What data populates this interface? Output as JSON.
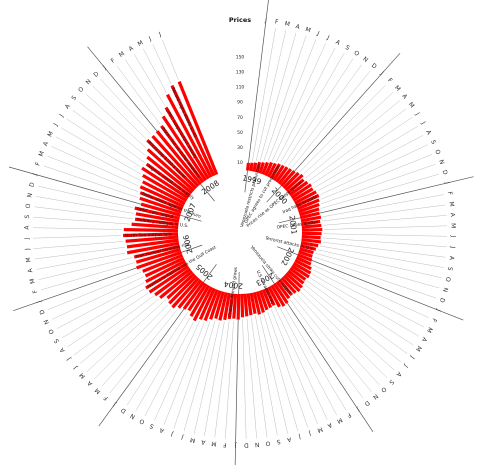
{
  "chart_data": {
    "type": "bar",
    "layout": "radial",
    "ylabel": "Prices",
    "yticks": [
      10,
      30,
      50,
      70,
      90,
      110,
      130,
      150
    ],
    "ylim": [
      0,
      150
    ],
    "month_letters": [
      "J",
      "F",
      "M",
      "A",
      "M",
      "J",
      "J",
      "A",
      "S",
      "O",
      "N",
      "D"
    ],
    "years": [
      "1999",
      "2000",
      "2001",
      "2002",
      "2003",
      "2004",
      "2005",
      "2006",
      "2007",
      "2008"
    ],
    "start": "1999-01",
    "end": "2008-07",
    "color": "#ff0000",
    "values": [
      10,
      11,
      12,
      14,
      15,
      17,
      19,
      20,
      22,
      23,
      24,
      25,
      26,
      28,
      30,
      27,
      29,
      31,
      30,
      32,
      33,
      31,
      29,
      27,
      26,
      27,
      25,
      26,
      27,
      26,
      25,
      26,
      23,
      21,
      19,
      19,
      20,
      21,
      24,
      26,
      27,
      25,
      26,
      28,
      29,
      27,
      26,
      27,
      31,
      32,
      30,
      25,
      26,
      27,
      29,
      30,
      28,
      29,
      30,
      31,
      34,
      33,
      34,
      36,
      38,
      37,
      40,
      44,
      45,
      50,
      47,
      42,
      44,
      47,
      52,
      51,
      48,
      55,
      58,
      62,
      63,
      59,
      56,
      57,
      63,
      61,
      62,
      70,
      69,
      70,
      73,
      72,
      62,
      58,
      58,
      61,
      54,
      58,
      60,
      63,
      63,
      67,
      73,
      71,
      76,
      82,
      91,
      90,
      91,
      93,
      102,
      110,
      124,
      132,
      133
    ],
    "annotations": [
      "Venezuela restricts production",
      "OPEC agrees to cut production",
      "Prices rise as OPEC keeps quotas",
      "Iraq halts exports",
      "OPEC raises quotas",
      "Terrorist attacks in U.S.",
      "Venezuela strike cuts output",
      "U.S. invades Iraq",
      "Chinese demand grows",
      "Hurricane Katrina hits the Gulf Coast",
      "Iran nuclear tensions rise",
      "North Sea output falls",
      "Refinery outages in U.S.",
      "OPEC cuts output",
      "Dollar slides against the euro",
      "Nigeria unrest cuts supply",
      "Prices top $100 a barrel",
      "Prices rise as dollar weakens",
      "OPEC keeps output steady",
      "Record highs above $140"
    ]
  }
}
